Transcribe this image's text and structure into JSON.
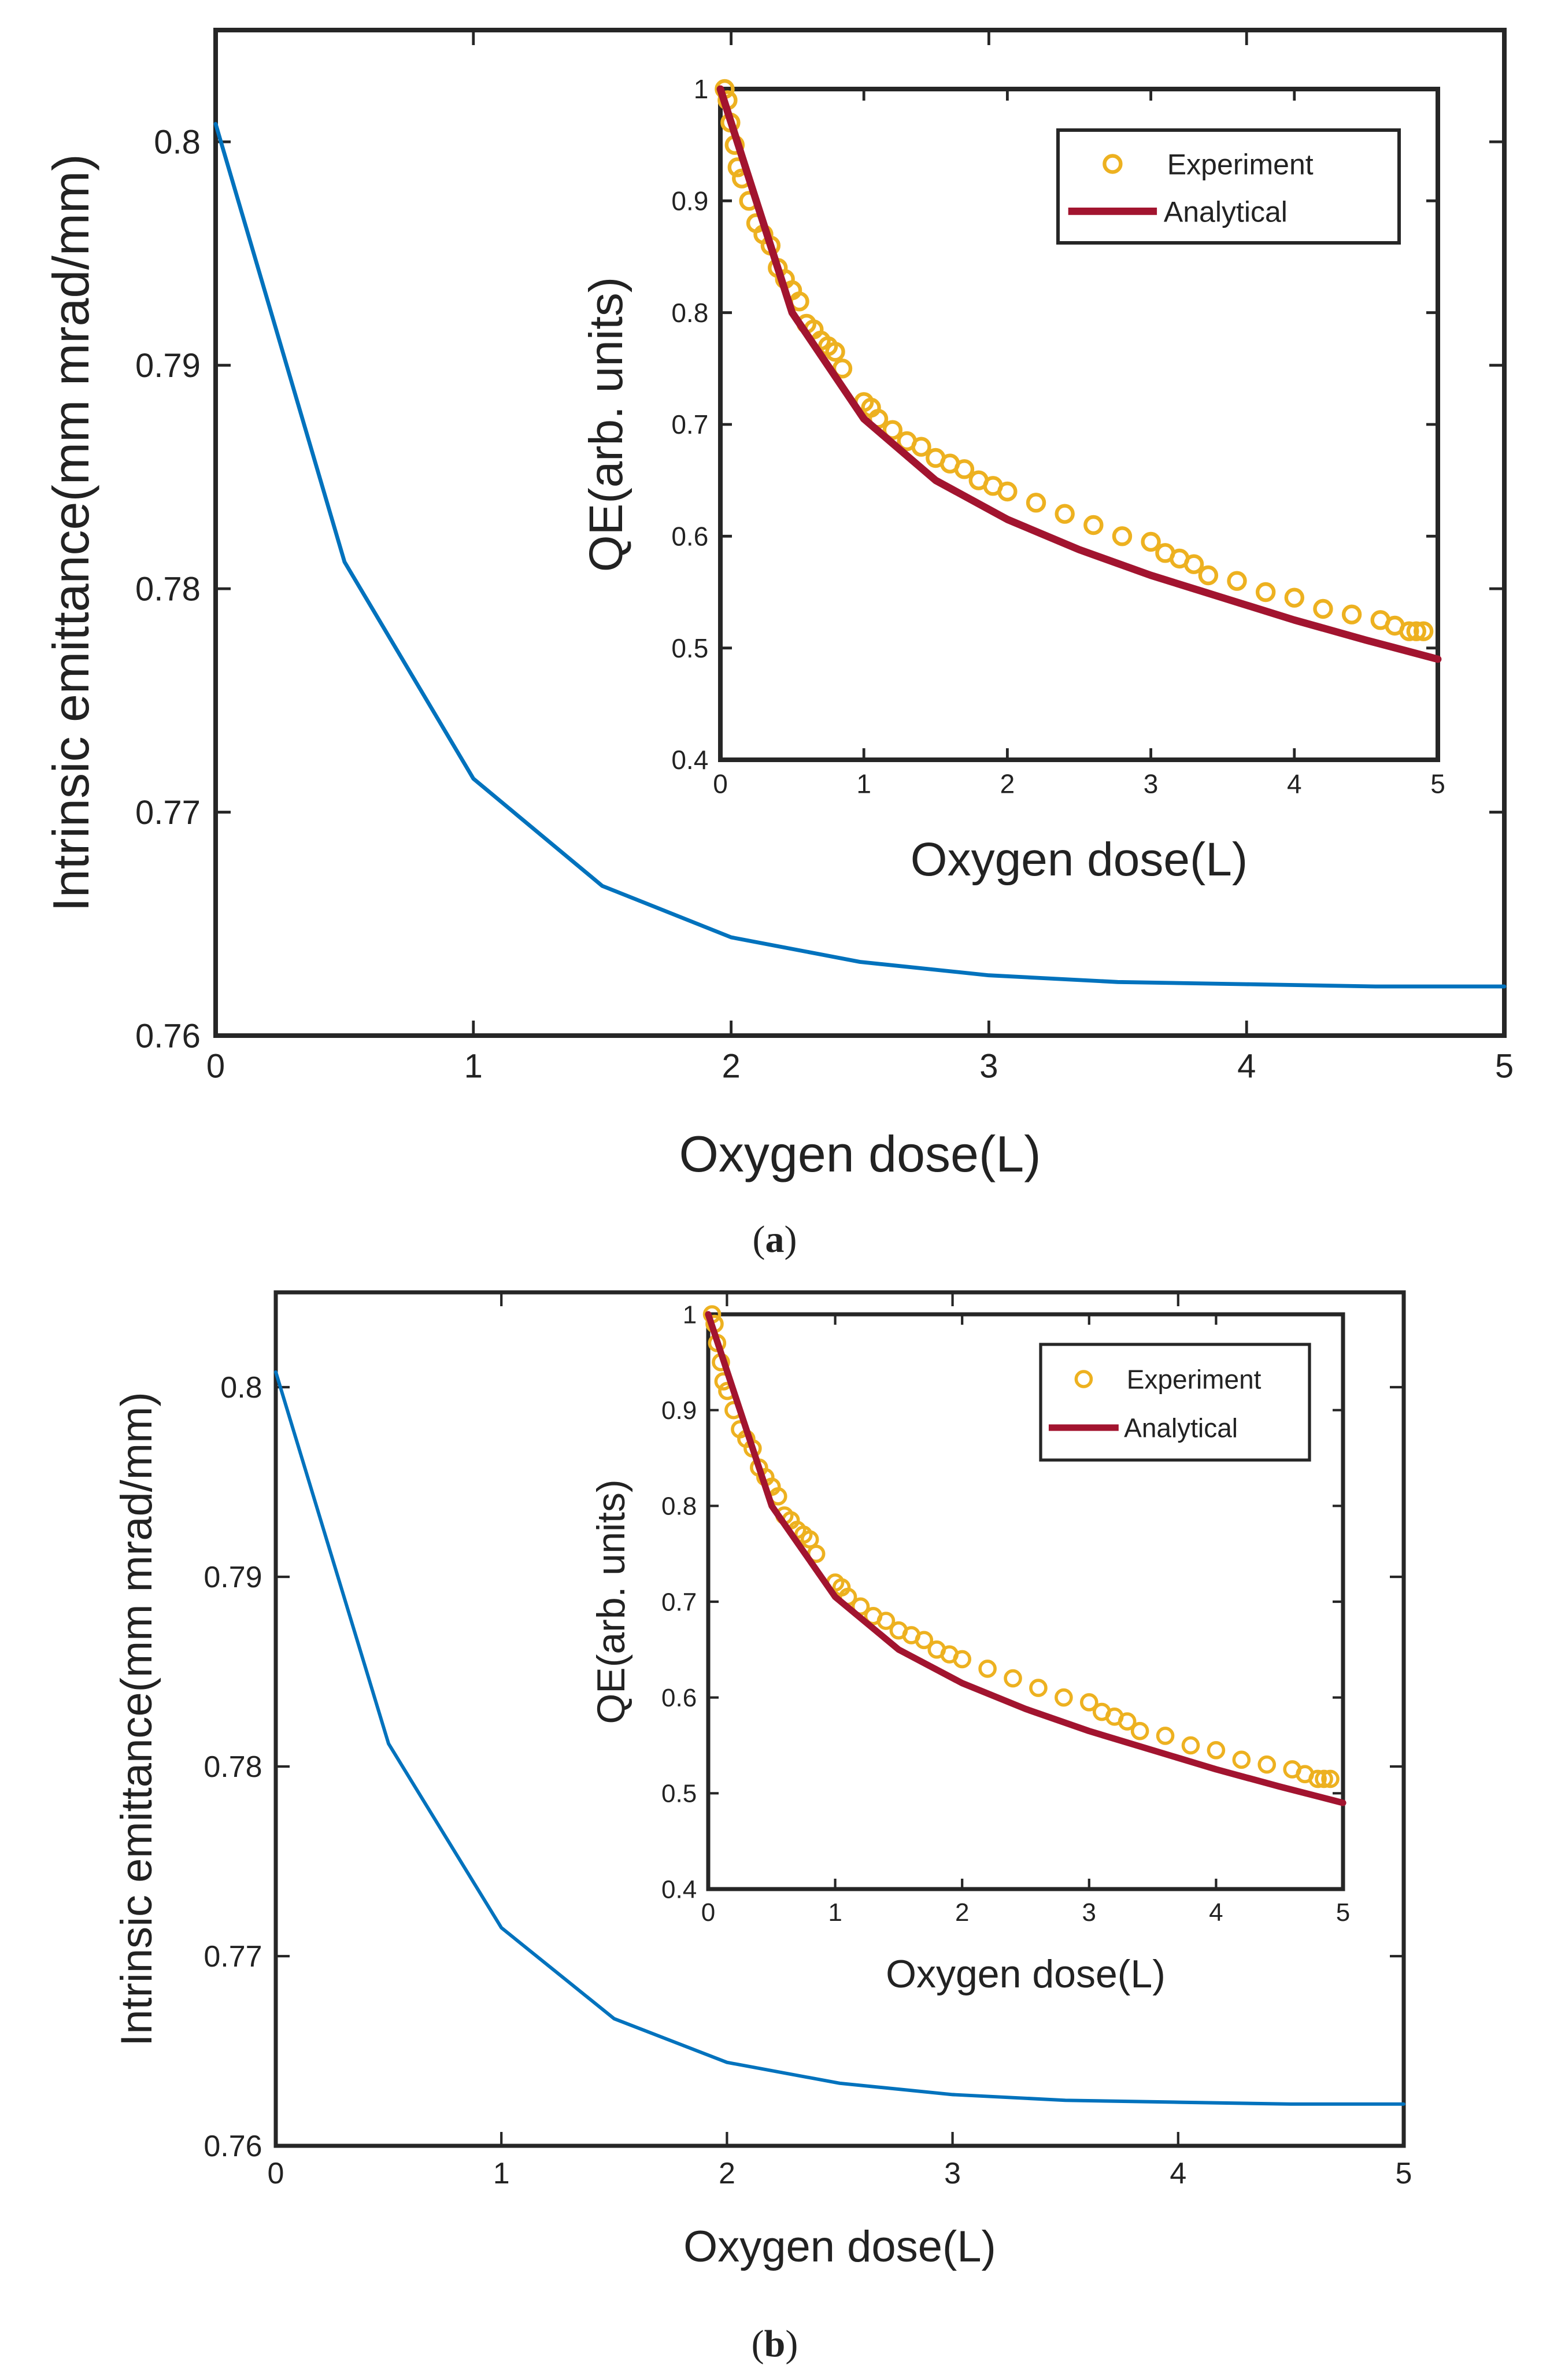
{
  "panels": [
    {
      "caption_letter": "a",
      "main": {
        "xlabel": "Oxygen dose(L)",
        "ylabel": "Intrinsic emittance(mm mrad/mm)",
        "xticks": [
          "0",
          "1",
          "2",
          "3",
          "4",
          "5"
        ],
        "yticks": [
          "0.76",
          "0.77",
          "0.78",
          "0.79",
          "0.8"
        ]
      },
      "inset": {
        "xlabel": "Oxygen dose(L)",
        "ylabel": "QE(arb. units)",
        "xticks": [
          "0",
          "1",
          "2",
          "3",
          "4",
          "5"
        ],
        "yticks": [
          "0.4",
          "0.5",
          "0.6",
          "0.7",
          "0.8",
          "0.9",
          "1"
        ],
        "legend": [
          "Experiment",
          "Analytical"
        ]
      }
    },
    {
      "caption_letter": "b",
      "main": {
        "xlabel": "Oxygen dose(L)",
        "ylabel": "Intrinsic emittance(mm mrad/mm)",
        "xticks": [
          "0",
          "1",
          "2",
          "3",
          "4",
          "5"
        ],
        "yticks": [
          "0.76",
          "0.77",
          "0.78",
          "0.79",
          "0.8"
        ]
      },
      "inset": {
        "xlabel": "Oxygen dose(L)",
        "ylabel": "QE(arb. units)",
        "xticks": [
          "0",
          "1",
          "2",
          "3",
          "4",
          "5"
        ],
        "yticks": [
          "0.4",
          "0.5",
          "0.6",
          "0.7",
          "0.8",
          "0.9",
          "1"
        ],
        "legend": [
          "Experiment",
          "Analytical"
        ]
      }
    }
  ],
  "colors": {
    "emittance_line": "#0072BD",
    "experiment": "#EDB120",
    "analytical": "#A2142F",
    "axes": "#262626"
  },
  "chart_data": [
    {
      "type": "line",
      "xlabel": "Oxygen dose(L)",
      "ylabel": "Intrinsic emittance(mm mrad/mm)",
      "xlim": [
        0,
        5
      ],
      "ylim": [
        0.76,
        0.805
      ],
      "grid": false,
      "series": [
        {
          "x": [
            0,
            0.5,
            1,
            1.5,
            2,
            2.5,
            3,
            3.5,
            4,
            4.5,
            5
          ],
          "y": [
            0.8008,
            0.7812,
            0.7715,
            0.7667,
            0.7644,
            0.7633,
            0.7627,
            0.7624,
            0.7623,
            0.7622,
            0.7622
          ]
        }
      ],
      "inset": {
        "type": "scatter",
        "xlabel": "Oxygen dose(L)",
        "ylabel": "QE(arb. units)",
        "xlim": [
          0,
          5
        ],
        "ylim": [
          0.4,
          1
        ],
        "legend_position": "top-right",
        "series": [
          {
            "name": "Experiment",
            "type": "scatter",
            "x": [
              0.03,
              0.05,
              0.07,
              0.1,
              0.12,
              0.15,
              0.2,
              0.25,
              0.3,
              0.35,
              0.4,
              0.45,
              0.5,
              0.55,
              0.6,
              0.65,
              0.7,
              0.75,
              0.8,
              0.85,
              1.0,
              1.05,
              1.1,
              1.2,
              1.3,
              1.4,
              1.5,
              1.6,
              1.7,
              1.8,
              1.9,
              2.0,
              2.2,
              2.4,
              2.6,
              2.8,
              3.0,
              3.1,
              3.2,
              3.3,
              3.4,
              3.6,
              3.8,
              4.0,
              4.2,
              4.4,
              4.6,
              4.7,
              4.8,
              4.85,
              4.9
            ],
            "y": [
              1.0,
              0.99,
              0.97,
              0.95,
              0.93,
              0.92,
              0.9,
              0.88,
              0.87,
              0.86,
              0.84,
              0.83,
              0.82,
              0.81,
              0.79,
              0.785,
              0.775,
              0.77,
              0.765,
              0.75,
              0.72,
              0.715,
              0.705,
              0.695,
              0.685,
              0.68,
              0.67,
              0.665,
              0.66,
              0.65,
              0.645,
              0.64,
              0.63,
              0.62,
              0.61,
              0.6,
              0.595,
              0.585,
              0.58,
              0.575,
              0.565,
              0.56,
              0.55,
              0.545,
              0.535,
              0.53,
              0.525,
              0.52,
              0.515,
              0.515,
              0.515
            ]
          },
          {
            "name": "Analytical",
            "type": "line",
            "x": [
              0,
              0.5,
              1,
              1.5,
              2,
              2.5,
              3,
              3.5,
              4,
              4.5,
              5
            ],
            "y": [
              1.0,
              0.8,
              0.705,
              0.65,
              0.615,
              0.588,
              0.565,
              0.545,
              0.525,
              0.507,
              0.49
            ]
          }
        ]
      }
    },
    {
      "type": "line",
      "xlabel": "Oxygen dose(L)",
      "ylabel": "Intrinsic emittance(mm mrad/mm)",
      "xlim": [
        0,
        5
      ],
      "ylim": [
        0.76,
        0.805
      ],
      "grid": false,
      "series": [
        {
          "x": [
            0,
            0.5,
            1,
            1.5,
            2,
            2.5,
            3,
            3.5,
            4,
            4.5,
            5
          ],
          "y": [
            0.8008,
            0.7812,
            0.7715,
            0.7667,
            0.7644,
            0.7633,
            0.7627,
            0.7624,
            0.7623,
            0.7622,
            0.7622
          ]
        }
      ],
      "inset": {
        "type": "scatter",
        "xlabel": "Oxygen dose(L)",
        "ylabel": "QE(arb. units)",
        "xlim": [
          0,
          5
        ],
        "ylim": [
          0.4,
          1
        ],
        "legend_position": "top-right",
        "series": [
          {
            "name": "Experiment",
            "type": "scatter",
            "x": [
              0.03,
              0.05,
              0.07,
              0.1,
              0.12,
              0.15,
              0.2,
              0.25,
              0.3,
              0.35,
              0.4,
              0.45,
              0.5,
              0.55,
              0.6,
              0.65,
              0.7,
              0.75,
              0.8,
              0.85,
              1.0,
              1.05,
              1.1,
              1.2,
              1.3,
              1.4,
              1.5,
              1.6,
              1.7,
              1.8,
              1.9,
              2.0,
              2.2,
              2.4,
              2.6,
              2.8,
              3.0,
              3.1,
              3.2,
              3.3,
              3.4,
              3.6,
              3.8,
              4.0,
              4.2,
              4.4,
              4.6,
              4.7,
              4.8,
              4.85,
              4.9
            ],
            "y": [
              1.0,
              0.99,
              0.97,
              0.95,
              0.93,
              0.92,
              0.9,
              0.88,
              0.87,
              0.86,
              0.84,
              0.83,
              0.82,
              0.81,
              0.79,
              0.785,
              0.775,
              0.77,
              0.765,
              0.75,
              0.72,
              0.715,
              0.705,
              0.695,
              0.685,
              0.68,
              0.67,
              0.665,
              0.66,
              0.65,
              0.645,
              0.64,
              0.63,
              0.62,
              0.61,
              0.6,
              0.595,
              0.585,
              0.58,
              0.575,
              0.565,
              0.56,
              0.55,
              0.545,
              0.535,
              0.53,
              0.525,
              0.52,
              0.515,
              0.515,
              0.515
            ]
          },
          {
            "name": "Analytical",
            "type": "line",
            "x": [
              0,
              0.5,
              1,
              1.5,
              2,
              2.5,
              3,
              3.5,
              4,
              4.5,
              5
            ],
            "y": [
              1.0,
              0.8,
              0.705,
              0.65,
              0.615,
              0.588,
              0.565,
              0.545,
              0.525,
              0.507,
              0.49
            ]
          }
        ]
      }
    }
  ]
}
